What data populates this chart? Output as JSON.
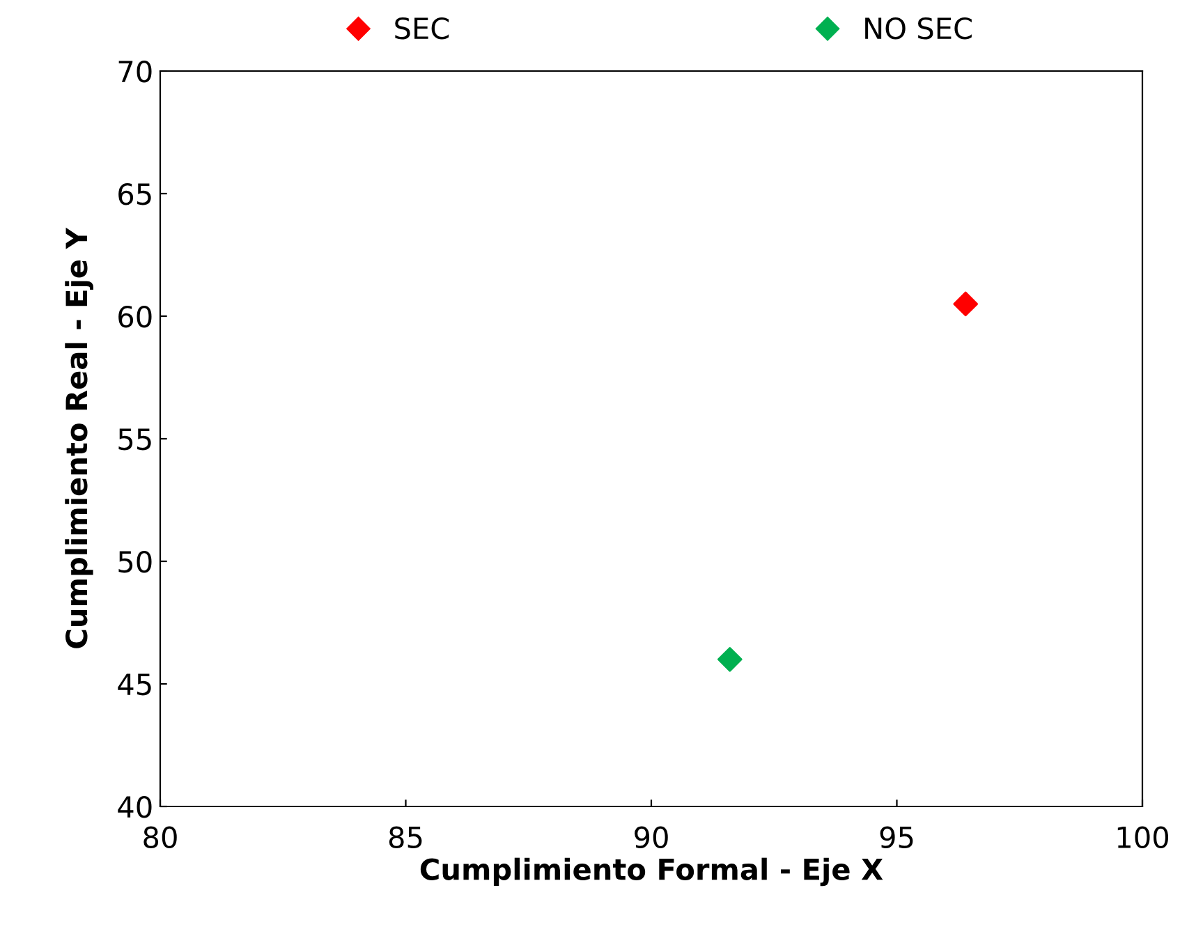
{
  "chart_data": {
    "type": "scatter",
    "xlabel": "Cumplimiento Formal - Eje X",
    "ylabel": "Cumplimiento Real - Eje Y",
    "series": [
      {
        "name": "SEC",
        "color": "#ff0000",
        "x": [
          96.4
        ],
        "values": [
          60.5
        ]
      },
      {
        "name": "NO SEC",
        "color": "#00b050",
        "x": [
          91.6
        ],
        "values": [
          46.0
        ]
      }
    ],
    "xlim": [
      80,
      100
    ],
    "xticks": [
      80,
      85,
      90,
      95,
      100
    ],
    "ylim": [
      40,
      70
    ],
    "yticks": [
      40,
      45,
      50,
      55,
      60,
      65,
      70
    ],
    "marker": "diamond",
    "legend": "top",
    "grid": false
  }
}
